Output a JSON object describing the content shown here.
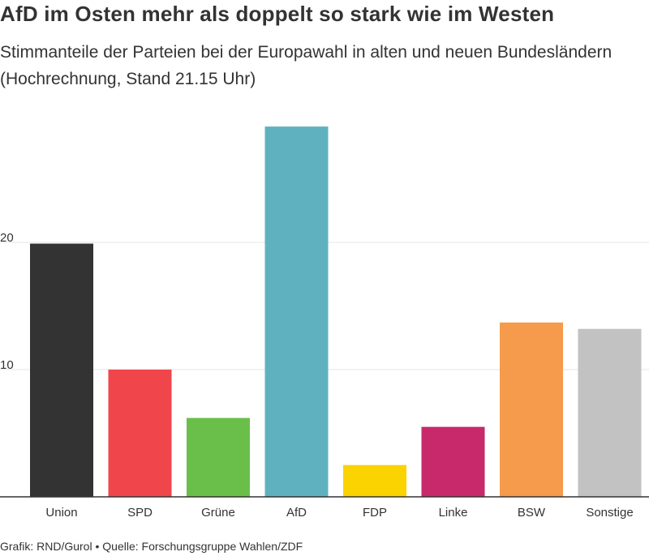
{
  "header": {
    "title": "AfD im Osten mehr als doppelt so stark wie im Westen",
    "subtitle": "Stimmanteile der Parteien bei der Europawahl in alten und neuen Bundesländern (Hochrechnung, Stand 21.15 Uhr)"
  },
  "footer": {
    "grafik": "Grafik: RND/Gurol",
    "separator": "•",
    "quelle": "Quelle: Forschungsgruppe Wahlen/ZDF"
  },
  "chart_data": {
    "type": "bar",
    "title": "AfD im Osten mehr als doppelt so stark wie im Westen",
    "subtitle": "Stimmanteile der Parteien bei der Europawahl in alten und neuen Bundesländern (Hochrechnung, Stand 21.15 Uhr)",
    "xlabel": "",
    "ylabel": "",
    "categories": [
      "Union",
      "SPD",
      "Grüne",
      "AfD",
      "FDP",
      "Linke",
      "BSW",
      "Sonstige"
    ],
    "values": [
      19.9,
      10.0,
      6.2,
      29.1,
      2.5,
      5.5,
      13.7,
      13.2
    ],
    "colors": [
      "#333333",
      "#f0464b",
      "#6abf4b",
      "#60b1bf",
      "#fbd300",
      "#c8296a",
      "#f59b4b",
      "#c2c2c2"
    ],
    "yticks": [
      10,
      20
    ],
    "ylim": [
      0,
      29.1
    ],
    "grid": true,
    "legend": "none"
  }
}
